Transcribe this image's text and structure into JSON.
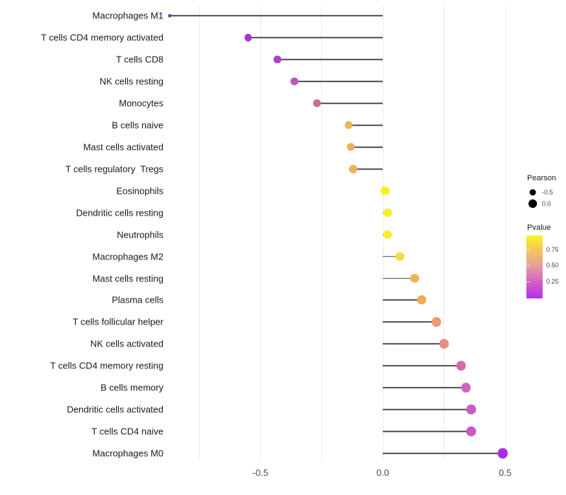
{
  "chart_data": {
    "type": "lollipop",
    "title": "",
    "xlabel": "",
    "ylabel": "",
    "xlim": [
      -0.88,
      0.58
    ],
    "grid": true,
    "gridline_values": [
      -0.75,
      -0.5,
      -0.25,
      0.0,
      0.25,
      0.5
    ],
    "x_ticks": [
      {
        "value": -0.5,
        "label": "-0.5"
      },
      {
        "value": 0.0,
        "label": "0.0"
      },
      {
        "value": 0.5,
        "label": "0.5"
      }
    ],
    "categories": [
      "Macrophages M1",
      "T cells CD4 memory activated",
      "T cells CD8",
      "NK cells resting",
      "Monocytes",
      "B cells naive",
      "Mast cells activated",
      "T cells regulatory  Tregs",
      "Eosinophils",
      "Dendritic cells resting",
      "Neutrophils",
      "Macrophages M2",
      "Mast cells resting",
      "Plasma cells",
      "T cells follicular helper",
      "NK cells activated",
      "T cells CD4 memory resting",
      "B cells memory",
      "Dendritic cells activated",
      "T cells CD4 naive",
      "Macrophages M0"
    ],
    "series": [
      {
        "name": "Pearson",
        "values": [
          -0.87,
          -0.55,
          -0.43,
          -0.36,
          -0.27,
          -0.14,
          -0.13,
          -0.12,
          0.01,
          0.02,
          0.02,
          0.07,
          0.13,
          0.16,
          0.22,
          0.25,
          0.32,
          0.34,
          0.36,
          0.36,
          0.49
        ]
      }
    ],
    "point_colors": [
      "#8f25c9",
      "#a935cd",
      "#b042c9",
      "#c256be",
      "#cc6b8f",
      "#edb25e",
      "#edb25e",
      "#eeb45c",
      "#f9f021",
      "#f9f021",
      "#f8ee26",
      "#f4dd3a",
      "#f0b351",
      "#eeab55",
      "#eb9a74",
      "#e88e86",
      "#d268b4",
      "#d164b8",
      "#c75ec6",
      "#c65aca",
      "#aa2de2"
    ],
    "point_radii": [
      2.2,
      5.3,
      5.4,
      5.4,
      5.5,
      5.7,
      5.7,
      5.8,
      6.1,
      6.1,
      6.2,
      6.3,
      6.4,
      6.5,
      6.6,
      6.8,
      6.8,
      6.9,
      7.0,
      7.0,
      7.4
    ],
    "stick_color": "#4d4d4d",
    "legend_position": "right"
  },
  "legend": {
    "size_title": "Pearson",
    "size_items": [
      {
        "label": "-0.5",
        "radius": 4.5
      },
      {
        "label": "0.0",
        "radius": 6.0
      }
    ],
    "color_title": "Pvalue",
    "color_ticks": [
      {
        "label": "0.75",
        "y": 353
      },
      {
        "label": "0.50",
        "y": 375
      },
      {
        "label": "0.25",
        "y": 398
      }
    ],
    "gradient_top_to_bottom": [
      "#f9f521",
      "#f2c35f",
      "#e79a9e",
      "#d15fc2",
      "#b430f2"
    ]
  }
}
